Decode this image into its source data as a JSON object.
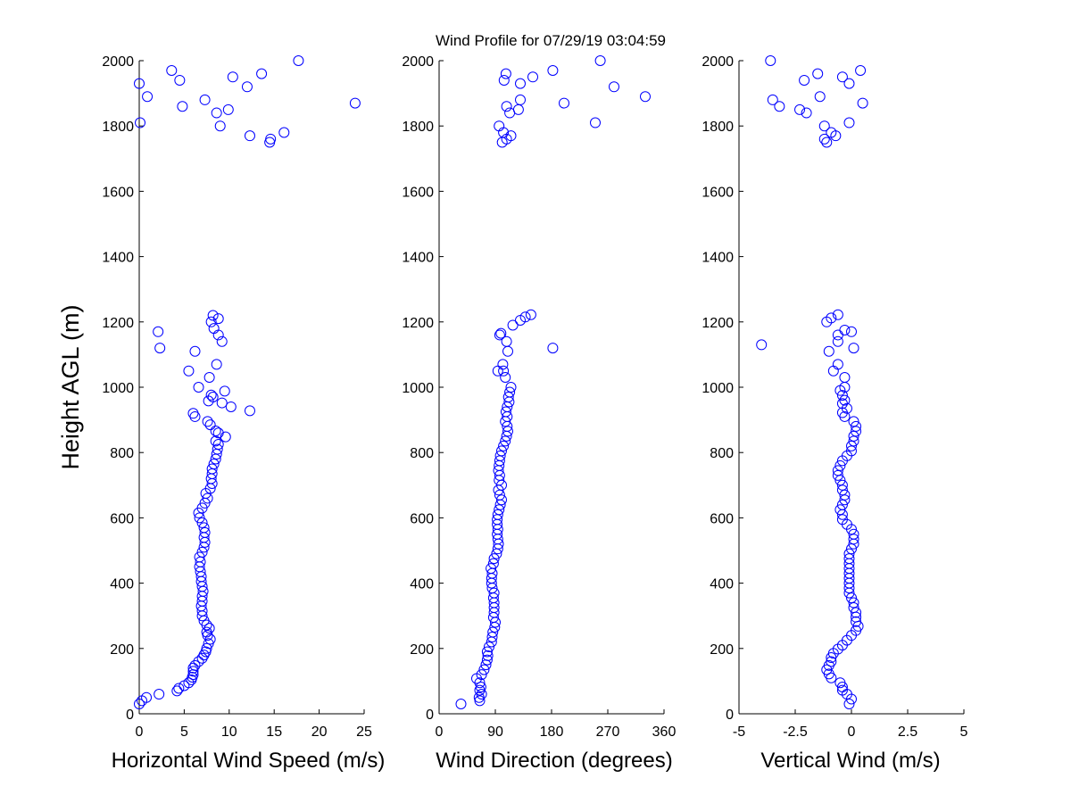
{
  "title": "Wind Profile for  07/29/19 03:04:59",
  "colors": {
    "marker": "#0000ff",
    "axis": "#000000",
    "background": "#ffffff"
  },
  "chart_data": [
    {
      "type": "scatter",
      "name": "horizontal-wind-speed",
      "xlabel": "Horizontal Wind Speed (m/s)",
      "ylabel": "Height AGL (m)",
      "xlim": [
        0,
        25
      ],
      "ylim": [
        0,
        2000
      ],
      "xticks": [
        0,
        5,
        10,
        15,
        20,
        25
      ],
      "xticklabels": [
        "0",
        "5",
        "10",
        "15",
        "20",
        "25"
      ],
      "yticks": [
        0,
        200,
        400,
        600,
        800,
        1000,
        1200,
        1400,
        1600,
        1800,
        2000
      ],
      "yticklabels": [
        "0",
        "200",
        "400",
        "600",
        "800",
        "1000",
        "1200",
        "1400",
        "1600",
        "1800",
        "2000"
      ],
      "grid": false,
      "marker": "open-circle",
      "points": [
        [
          0.0,
          30
        ],
        [
          0.3,
          40
        ],
        [
          0.8,
          50
        ],
        [
          2.2,
          60
        ],
        [
          4.2,
          70
        ],
        [
          4.4,
          78
        ],
        [
          5.0,
          86
        ],
        [
          5.5,
          95
        ],
        [
          5.8,
          104
        ],
        [
          5.9,
          112
        ],
        [
          6.0,
          120
        ],
        [
          6.0,
          130
        ],
        [
          6.0,
          140
        ],
        [
          6.2,
          148
        ],
        [
          6.6,
          160
        ],
        [
          7.0,
          170
        ],
        [
          7.2,
          180
        ],
        [
          7.4,
          190
        ],
        [
          7.5,
          200
        ],
        [
          7.7,
          215
        ],
        [
          7.9,
          228
        ],
        [
          7.6,
          240
        ],
        [
          7.5,
          250
        ],
        [
          7.8,
          262
        ],
        [
          7.5,
          272
        ],
        [
          7.2,
          285
        ],
        [
          7.0,
          300
        ],
        [
          7.0,
          315
        ],
        [
          6.9,
          330
        ],
        [
          7.0,
          345
        ],
        [
          7.0,
          360
        ],
        [
          7.1,
          375
        ],
        [
          7.0,
          390
        ],
        [
          6.9,
          405
        ],
        [
          6.9,
          420
        ],
        [
          6.8,
          435
        ],
        [
          6.7,
          450
        ],
        [
          6.8,
          465
        ],
        [
          6.7,
          480
        ],
        [
          7.0,
          495
        ],
        [
          7.2,
          510
        ],
        [
          7.3,
          525
        ],
        [
          7.2,
          540
        ],
        [
          7.3,
          555
        ],
        [
          7.2,
          570
        ],
        [
          7.0,
          585
        ],
        [
          6.7,
          600
        ],
        [
          6.6,
          615
        ],
        [
          7.0,
          630
        ],
        [
          7.3,
          645
        ],
        [
          7.6,
          660
        ],
        [
          7.4,
          675
        ],
        [
          7.9,
          690
        ],
        [
          8.1,
          705
        ],
        [
          8.0,
          720
        ],
        [
          8.1,
          735
        ],
        [
          8.1,
          750
        ],
        [
          8.3,
          765
        ],
        [
          8.5,
          780
        ],
        [
          8.6,
          795
        ],
        [
          8.7,
          810
        ],
        [
          8.8,
          825
        ],
        [
          8.5,
          835
        ],
        [
          9.6,
          848
        ],
        [
          8.8,
          860
        ],
        [
          8.5,
          866
        ],
        [
          7.9,
          885
        ],
        [
          7.6,
          895
        ],
        [
          12.3,
          928
        ],
        [
          6.2,
          910
        ],
        [
          6.0,
          920
        ],
        [
          10.2,
          940
        ],
        [
          9.2,
          952
        ],
        [
          7.7,
          958
        ],
        [
          8.2,
          970
        ],
        [
          8.0,
          976
        ],
        [
          9.5,
          988
        ],
        [
          6.6,
          1000
        ],
        [
          7.8,
          1030
        ],
        [
          5.5,
          1050
        ],
        [
          8.6,
          1070
        ],
        [
          6.2,
          1110
        ],
        [
          2.3,
          1120
        ],
        [
          9.2,
          1140
        ],
        [
          8.8,
          1160
        ],
        [
          2.1,
          1170
        ],
        [
          8.3,
          1180
        ],
        [
          8.0,
          1200
        ],
        [
          8.8,
          1210
        ],
        [
          8.2,
          1220
        ],
        [
          14.5,
          1750
        ],
        [
          14.6,
          1760
        ],
        [
          12.3,
          1770
        ],
        [
          16.1,
          1780
        ],
        [
          9.0,
          1800
        ],
        [
          0.1,
          1810
        ],
        [
          8.6,
          1840
        ],
        [
          9.9,
          1850
        ],
        [
          4.8,
          1860
        ],
        [
          24.0,
          1870
        ],
        [
          7.3,
          1880
        ],
        [
          0.9,
          1890
        ],
        [
          12.0,
          1920
        ],
        [
          0.0,
          1930
        ],
        [
          4.5,
          1940
        ],
        [
          10.4,
          1950
        ],
        [
          13.6,
          1960
        ],
        [
          3.6,
          1970
        ],
        [
          17.7,
          2000
        ]
      ]
    },
    {
      "type": "scatter",
      "name": "wind-direction",
      "xlabel": "Wind Direction (degrees)",
      "ylabel": "",
      "xlim": [
        0,
        360
      ],
      "ylim": [
        0,
        2000
      ],
      "xticks": [
        0,
        90,
        180,
        270,
        360
      ],
      "xticklabels": [
        "0",
        "90",
        "180",
        "270",
        "360"
      ],
      "yticks": [
        0,
        200,
        400,
        600,
        800,
        1000,
        1200,
        1400,
        1600,
        1800,
        2000
      ],
      "yticklabels": [
        "0",
        "200",
        "400",
        "600",
        "800",
        "1000",
        "1200",
        "1400",
        "1600",
        "1800",
        "2000"
      ],
      "grid": false,
      "marker": "open-circle",
      "points": [
        [
          35,
          30
        ],
        [
          65,
          40
        ],
        [
          64,
          50
        ],
        [
          68,
          60
        ],
        [
          65,
          72
        ],
        [
          67,
          82
        ],
        [
          65,
          95
        ],
        [
          60,
          108
        ],
        [
          68,
          120
        ],
        [
          72,
          135
        ],
        [
          75,
          150
        ],
        [
          77,
          165
        ],
        [
          78,
          178
        ],
        [
          77,
          190
        ],
        [
          80,
          205
        ],
        [
          84,
          220
        ],
        [
          85,
          235
        ],
        [
          86,
          250
        ],
        [
          89,
          265
        ],
        [
          90,
          280
        ],
        [
          87,
          295
        ],
        [
          88,
          310
        ],
        [
          88,
          325
        ],
        [
          88,
          340
        ],
        [
          87,
          355
        ],
        [
          88,
          370
        ],
        [
          85,
          385
        ],
        [
          84,
          400
        ],
        [
          84,
          415
        ],
        [
          85,
          430
        ],
        [
          83,
          445
        ],
        [
          87,
          460
        ],
        [
          88,
          475
        ],
        [
          92,
          490
        ],
        [
          94,
          505
        ],
        [
          95,
          520
        ],
        [
          94,
          535
        ],
        [
          93,
          550
        ],
        [
          94,
          565
        ],
        [
          93,
          580
        ],
        [
          93,
          595
        ],
        [
          94,
          610
        ],
        [
          96,
          625
        ],
        [
          98,
          640
        ],
        [
          100,
          655
        ],
        [
          97,
          670
        ],
        [
          95,
          685
        ],
        [
          100,
          700
        ],
        [
          96,
          715
        ],
        [
          97,
          730
        ],
        [
          95,
          745
        ],
        [
          96,
          760
        ],
        [
          97,
          775
        ],
        [
          98,
          790
        ],
        [
          100,
          805
        ],
        [
          103,
          820
        ],
        [
          106,
          835
        ],
        [
          108,
          850
        ],
        [
          110,
          865
        ],
        [
          109,
          880
        ],
        [
          106,
          895
        ],
        [
          109,
          910
        ],
        [
          107,
          925
        ],
        [
          109,
          940
        ],
        [
          112,
          955
        ],
        [
          111,
          970
        ],
        [
          113,
          985
        ],
        [
          115,
          1000
        ],
        [
          106,
          1030
        ],
        [
          103,
          1050
        ],
        [
          94,
          1050
        ],
        [
          102,
          1070
        ],
        [
          110,
          1110
        ],
        [
          182,
          1120
        ],
        [
          108,
          1140
        ],
        [
          97,
          1160
        ],
        [
          99,
          1165
        ],
        [
          118,
          1190
        ],
        [
          130,
          1205
        ],
        [
          138,
          1215
        ],
        [
          147,
          1222
        ],
        [
          101,
          1750
        ],
        [
          108,
          1760
        ],
        [
          115,
          1770
        ],
        [
          103,
          1780
        ],
        [
          96,
          1800
        ],
        [
          250,
          1810
        ],
        [
          113,
          1840
        ],
        [
          127,
          1850
        ],
        [
          108,
          1860
        ],
        [
          200,
          1870
        ],
        [
          130,
          1880
        ],
        [
          330,
          1890
        ],
        [
          280,
          1920
        ],
        [
          130,
          1930
        ],
        [
          104,
          1940
        ],
        [
          150,
          1950
        ],
        [
          107,
          1960
        ],
        [
          182,
          1970
        ],
        [
          258,
          2000
        ]
      ]
    },
    {
      "type": "scatter",
      "name": "vertical-wind",
      "xlabel": "Vertical Wind (m/s)",
      "ylabel": "",
      "xlim": [
        -5,
        5
      ],
      "ylim": [
        0,
        2000
      ],
      "xticks": [
        -5,
        -2.5,
        0,
        2.5,
        5
      ],
      "xticklabels": [
        "-5",
        "-2.5",
        "0",
        "2.5",
        "5"
      ],
      "yticks": [
        0,
        200,
        400,
        600,
        800,
        1000,
        1200,
        1400,
        1600,
        1800,
        2000
      ],
      "yticklabels": [
        "0",
        "200",
        "400",
        "600",
        "800",
        "1000",
        "1200",
        "1400",
        "1600",
        "1800",
        "2000"
      ],
      "grid": false,
      "marker": "open-circle",
      "points": [
        [
          -0.1,
          30
        ],
        [
          0.0,
          45
        ],
        [
          -0.2,
          60
        ],
        [
          -0.4,
          72
        ],
        [
          -0.4,
          82
        ],
        [
          -0.5,
          95
        ],
        [
          -0.9,
          110
        ],
        [
          -1.0,
          122
        ],
        [
          -1.1,
          135
        ],
        [
          -1.0,
          148
        ],
        [
          -0.9,
          160
        ],
        [
          -0.9,
          172
        ],
        [
          -0.8,
          185
        ],
        [
          -0.6,
          198
        ],
        [
          -0.4,
          210
        ],
        [
          -0.2,
          225
        ],
        [
          0.0,
          240
        ],
        [
          0.2,
          255
        ],
        [
          0.3,
          268
        ],
        [
          0.2,
          282
        ],
        [
          0.2,
          296
        ],
        [
          0.2,
          310
        ],
        [
          0.1,
          325
        ],
        [
          0.1,
          340
        ],
        [
          0.0,
          355
        ],
        [
          -0.1,
          370
        ],
        [
          -0.1,
          385
        ],
        [
          -0.1,
          400
        ],
        [
          -0.1,
          415
        ],
        [
          -0.1,
          430
        ],
        [
          -0.1,
          445
        ],
        [
          -0.1,
          460
        ],
        [
          -0.1,
          475
        ],
        [
          -0.1,
          490
        ],
        [
          0.0,
          505
        ],
        [
          0.1,
          520
        ],
        [
          0.1,
          535
        ],
        [
          0.1,
          550
        ],
        [
          0.0,
          565
        ],
        [
          -0.2,
          580
        ],
        [
          -0.4,
          595
        ],
        [
          -0.4,
          610
        ],
        [
          -0.5,
          625
        ],
        [
          -0.4,
          640
        ],
        [
          -0.3,
          655
        ],
        [
          -0.3,
          670
        ],
        [
          -0.4,
          685
        ],
        [
          -0.4,
          700
        ],
        [
          -0.5,
          715
        ],
        [
          -0.6,
          730
        ],
        [
          -0.6,
          745
        ],
        [
          -0.5,
          760
        ],
        [
          -0.4,
          775
        ],
        [
          -0.2,
          790
        ],
        [
          0.0,
          805
        ],
        [
          0.0,
          820
        ],
        [
          0.1,
          835
        ],
        [
          0.1,
          850
        ],
        [
          0.2,
          865
        ],
        [
          0.2,
          880
        ],
        [
          0.1,
          895
        ],
        [
          -0.3,
          910
        ],
        [
          -0.4,
          922
        ],
        [
          -0.2,
          935
        ],
        [
          -0.4,
          950
        ],
        [
          -0.3,
          960
        ],
        [
          -0.4,
          975
        ],
        [
          -0.5,
          990
        ],
        [
          -0.3,
          1000
        ],
        [
          -0.3,
          1030
        ],
        [
          -0.8,
          1050
        ],
        [
          -0.6,
          1070
        ],
        [
          -1.0,
          1110
        ],
        [
          0.1,
          1120
        ],
        [
          -4.0,
          1130
        ],
        [
          -0.6,
          1140
        ],
        [
          -0.6,
          1160
        ],
        [
          -0.3,
          1175
        ],
        [
          0.0,
          1170
        ],
        [
          -1.1,
          1200
        ],
        [
          -0.9,
          1212
        ],
        [
          -0.6,
          1222
        ],
        [
          -1.1,
          1750
        ],
        [
          -1.2,
          1760
        ],
        [
          -0.7,
          1770
        ],
        [
          -0.9,
          1780
        ],
        [
          -1.2,
          1800
        ],
        [
          -0.1,
          1810
        ],
        [
          -2.0,
          1840
        ],
        [
          -2.3,
          1850
        ],
        [
          -3.2,
          1860
        ],
        [
          0.5,
          1870
        ],
        [
          -3.5,
          1880
        ],
        [
          -1.4,
          1890
        ],
        [
          -0.1,
          1930
        ],
        [
          -2.1,
          1940
        ],
        [
          -0.4,
          1950
        ],
        [
          -1.5,
          1960
        ],
        [
          0.4,
          1970
        ],
        [
          -3.6,
          2000
        ]
      ]
    }
  ]
}
